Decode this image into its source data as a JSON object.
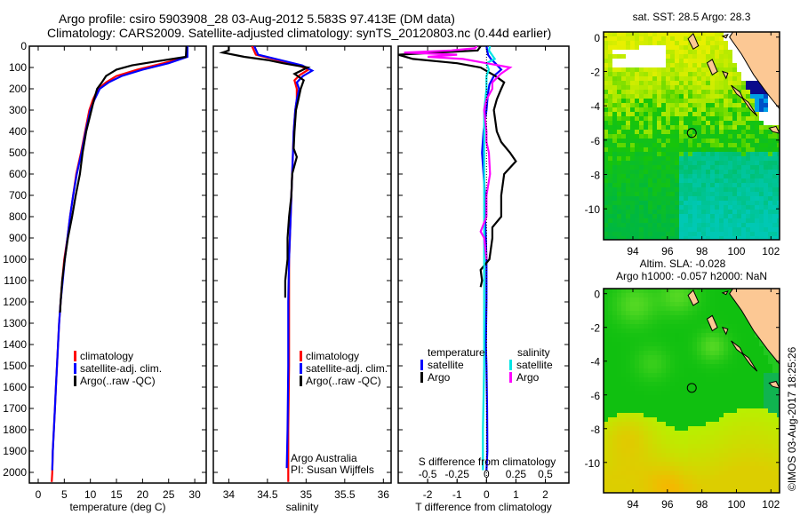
{
  "header": {
    "line1": "Argo profile: csiro 5903908_28 03-Aug-2012 5.583S 97.413E (DM data)",
    "line2": "Climatology: CARS2009. Satellite-adjusted climatology: synTS_20120803.nc (0.44d earlier)"
  },
  "colors": {
    "climatology": "#ff0000",
    "satellite": "#0000ff",
    "argo": "#000000",
    "salinity_satellite": "#00e5e5",
    "salinity_argo": "#ff00ff",
    "land": "#fcc894"
  },
  "chart_data": [
    {
      "type": "line",
      "name": "temperature-profile",
      "xlabel": "temperature (deg C)",
      "ylabel": "",
      "xlim": [
        -1.7,
        32.2
      ],
      "ylim": [
        2050,
        0
      ],
      "xticks": [
        0,
        5,
        10,
        15,
        20,
        25,
        30
      ],
      "yticks": [
        0,
        100,
        200,
        300,
        400,
        500,
        600,
        700,
        800,
        900,
        1000,
        1100,
        1200,
        1300,
        1400,
        1500,
        1600,
        1700,
        1800,
        1900,
        2000
      ],
      "legend": [
        "climatology",
        "satellite-adj. clim.",
        "Argo(..raw -QC)"
      ],
      "legend_position": "center",
      "series": [
        {
          "name": "climatology",
          "color": "#ff0000",
          "points": [
            [
              28.6,
              0
            ],
            [
              28.5,
              50
            ],
            [
              24,
              80
            ],
            [
              19,
              110
            ],
            [
              15,
              140
            ],
            [
              13,
              170
            ],
            [
              11.5,
              200
            ],
            [
              10.5,
              250
            ],
            [
              9.8,
              300
            ],
            [
              9.0,
              400
            ],
            [
              8.2,
              500
            ],
            [
              7.3,
              600
            ],
            [
              6.7,
              700
            ],
            [
              6.1,
              800
            ],
            [
              5.6,
              900
            ],
            [
              5.0,
              1000
            ],
            [
              4.6,
              1100
            ],
            [
              4.3,
              1200
            ],
            [
              4.0,
              1300
            ],
            [
              3.8,
              1400
            ],
            [
              3.6,
              1500
            ],
            [
              3.4,
              1600
            ],
            [
              3.2,
              1700
            ],
            [
              3.0,
              1800
            ],
            [
              2.8,
              1900
            ],
            [
              2.7,
              2000
            ],
            [
              2.6,
              2045
            ]
          ]
        },
        {
          "name": "satellite-adj. clim.",
          "color": "#0000ff",
          "points": [
            [
              28.6,
              0
            ],
            [
              28.6,
              50
            ],
            [
              25,
              80
            ],
            [
              20,
              110
            ],
            [
              16,
              140
            ],
            [
              13.5,
              170
            ],
            [
              11.8,
              200
            ],
            [
              10.8,
              250
            ],
            [
              10,
              300
            ],
            [
              9.1,
              400
            ],
            [
              8.3,
              500
            ],
            [
              7.4,
              600
            ],
            [
              6.7,
              700
            ],
            [
              6.1,
              800
            ],
            [
              5.6,
              900
            ],
            [
              5.1,
              1000
            ],
            [
              4.7,
              1100
            ],
            [
              4.3,
              1200
            ],
            [
              4.0,
              1300
            ],
            [
              3.8,
              1400
            ],
            [
              3.6,
              1500
            ],
            [
              3.4,
              1600
            ],
            [
              3.2,
              1700
            ],
            [
              3.0,
              1800
            ],
            [
              2.8,
              1900
            ],
            [
              2.7,
              1990
            ]
          ]
        },
        {
          "name": "Argo(..raw -QC)",
          "color": "#000000",
          "points": [
            [
              28.4,
              0
            ],
            [
              28.3,
              50
            ],
            [
              23,
              70
            ],
            [
              18,
              90
            ],
            [
              15,
              110
            ],
            [
              13,
              140
            ],
            [
              12.2,
              170
            ],
            [
              11.3,
              200
            ],
            [
              10.7,
              250
            ],
            [
              10.2,
              300
            ],
            [
              9.2,
              400
            ],
            [
              8.5,
              500
            ],
            [
              8.0,
              600
            ],
            [
              7.2,
              700
            ],
            [
              6.5,
              800
            ],
            [
              5.7,
              900
            ],
            [
              5.1,
              1000
            ],
            [
              4.6,
              1100
            ],
            [
              4.3,
              1200
            ],
            [
              4.2,
              1250
            ]
          ]
        }
      ]
    },
    {
      "type": "line",
      "name": "salinity-profile",
      "xlabel": "salinity",
      "xlim": [
        33.8,
        36.1
      ],
      "ylim": [
        2050,
        0
      ],
      "xticks": [
        34,
        34.5,
        35,
        35.5,
        36
      ],
      "legend": [
        "climatology",
        "satellite-adj. clim.",
        "Argo(..raw -QC)"
      ],
      "legend_position": "center-right",
      "annotation": [
        "Argo Australia",
        "PI: Susan Wijffels"
      ],
      "series": [
        {
          "name": "climatology",
          "color": "#ff0000",
          "points": [
            [
              34.3,
              0
            ],
            [
              34.35,
              40
            ],
            [
              34.9,
              90
            ],
            [
              35.03,
              110
            ],
            [
              34.92,
              135
            ],
            [
              34.85,
              160
            ],
            [
              34.88,
              200
            ],
            [
              34.88,
              250
            ],
            [
              34.86,
              300
            ],
            [
              34.84,
              400
            ],
            [
              34.83,
              500
            ],
            [
              34.82,
              600
            ],
            [
              34.81,
              700
            ],
            [
              34.8,
              800
            ],
            [
              34.79,
              900
            ],
            [
              34.78,
              1000
            ],
            [
              34.78,
              1200
            ],
            [
              34.78,
              1500
            ],
            [
              34.77,
              1800
            ],
            [
              34.77,
              2045
            ]
          ]
        },
        {
          "name": "satellite-adj. clim.",
          "color": "#0000ff",
          "points": [
            [
              34.33,
              0
            ],
            [
              34.38,
              40
            ],
            [
              34.95,
              90
            ],
            [
              35.08,
              115
            ],
            [
              34.96,
              140
            ],
            [
              34.88,
              170
            ],
            [
              34.91,
              200
            ],
            [
              34.88,
              250
            ],
            [
              34.86,
              300
            ],
            [
              34.84,
              400
            ],
            [
              34.83,
              500
            ],
            [
              34.82,
              600
            ],
            [
              34.81,
              700
            ],
            [
              34.8,
              800
            ],
            [
              34.79,
              900
            ],
            [
              34.78,
              1000
            ],
            [
              34.77,
              1200
            ],
            [
              34.77,
              1500
            ],
            [
              34.76,
              1800
            ],
            [
              34.75,
              1980
            ]
          ]
        },
        {
          "name": "Argo(..raw -QC)",
          "color": "#000000",
          "points": [
            [
              34.0,
              0
            ],
            [
              34.0,
              20
            ],
            [
              33.92,
              30
            ],
            [
              34.2,
              50
            ],
            [
              34.5,
              65
            ],
            [
              34.7,
              80
            ],
            [
              35.02,
              100
            ],
            [
              34.85,
              130
            ],
            [
              34.97,
              160
            ],
            [
              34.93,
              200
            ],
            [
              34.9,
              250
            ],
            [
              34.87,
              300
            ],
            [
              34.85,
              400
            ],
            [
              34.84,
              480
            ],
            [
              34.88,
              520
            ],
            [
              34.82,
              600
            ],
            [
              34.81,
              700
            ],
            [
              34.78,
              800
            ],
            [
              34.76,
              900
            ],
            [
              34.76,
              1000
            ],
            [
              34.73,
              1100
            ],
            [
              34.73,
              1180
            ]
          ]
        }
      ]
    },
    {
      "type": "line",
      "name": "difference-profile",
      "xlabel": "T difference from climatology",
      "xlabel2": "S difference from climatology",
      "xlim": [
        -3.0,
        2.8
      ],
      "xticks": [
        -2,
        -1,
        0,
        1,
        2
      ],
      "xticks2": [
        -0.5,
        -0.25,
        0,
        0.25,
        0.5
      ],
      "ylim": [
        2050,
        0
      ],
      "legend_headers": [
        "temperature",
        "salinity"
      ],
      "legend": [
        "satellite",
        "Argo",
        "satellite",
        "Argo"
      ],
      "legend_position": "bottom",
      "series": [
        {
          "name": "temperature satellite",
          "color": "#0000ff",
          "axis": "T",
          "points": [
            [
              0.0,
              0
            ],
            [
              0.05,
              40
            ],
            [
              0.15,
              60
            ],
            [
              0.3,
              80
            ],
            [
              0.5,
              110
            ],
            [
              0.25,
              140
            ],
            [
              0.1,
              180
            ],
            [
              0.05,
              220
            ],
            [
              0.0,
              300
            ],
            [
              -0.1,
              400
            ],
            [
              -0.15,
              500
            ],
            [
              -0.1,
              600
            ],
            [
              -0.05,
              700
            ],
            [
              -0.05,
              800
            ],
            [
              -0.02,
              900
            ],
            [
              0,
              1000
            ],
            [
              0,
              1200
            ],
            [
              -0.02,
              1400
            ],
            [
              0,
              1500
            ],
            [
              0.02,
              1700
            ],
            [
              0.03,
              1900
            ],
            [
              0.0,
              1990
            ]
          ]
        },
        {
          "name": "temperature Argo",
          "color": "#000000",
          "axis": "T",
          "points": [
            [
              -0.2,
              0
            ],
            [
              -0.3,
              20
            ],
            [
              -3.0,
              40
            ],
            [
              -2.5,
              60
            ],
            [
              -1.0,
              80
            ],
            [
              -0.2,
              100
            ],
            [
              0.3,
              140
            ],
            [
              0.6,
              170
            ],
            [
              0.5,
              200
            ],
            [
              0.35,
              250
            ],
            [
              0.25,
              300
            ],
            [
              0.35,
              400
            ],
            [
              0.5,
              450
            ],
            [
              0.8,
              500
            ],
            [
              1.0,
              540
            ],
            [
              0.6,
              600
            ],
            [
              0.5,
              700
            ],
            [
              0.5,
              800
            ],
            [
              0.2,
              850
            ],
            [
              0.2,
              900
            ],
            [
              0.1,
              1000
            ],
            [
              -0.2,
              1050
            ],
            [
              -0.15,
              1100
            ],
            [
              -0.2,
              1130
            ]
          ]
        },
        {
          "name": "salinity satellite",
          "color": "#00e5e5",
          "axis": "S",
          "points": [
            [
              0.03,
              0
            ],
            [
              0.02,
              20
            ],
            [
              0.07,
              60
            ],
            [
              0.0,
              80
            ],
            [
              0.02,
              110
            ],
            [
              0.0,
              140
            ],
            [
              0.0,
              200
            ],
            [
              -0.02,
              300
            ],
            [
              -0.02,
              500
            ],
            [
              -0.02,
              800
            ],
            [
              -0.02,
              1000
            ],
            [
              -0.02,
              1200
            ],
            [
              -0.02,
              1500
            ],
            [
              -0.03,
              1800
            ],
            [
              -0.03,
              1990
            ]
          ]
        },
        {
          "name": "salinity Argo",
          "color": "#ff00ff",
          "axis": "S",
          "points": [
            [
              -0.08,
              0
            ],
            [
              -0.1,
              10
            ],
            [
              -0.3,
              20
            ],
            [
              -0.7,
              30
            ],
            [
              -0.25,
              40
            ],
            [
              -0.5,
              50
            ],
            [
              -0.2,
              60
            ],
            [
              0.0,
              80
            ],
            [
              0.1,
              90
            ],
            [
              0.2,
              100
            ],
            [
              0.12,
              130
            ],
            [
              0.05,
              170
            ],
            [
              0.05,
              200
            ],
            [
              0.0,
              250
            ],
            [
              -0.02,
              300
            ],
            [
              0.0,
              400
            ],
            [
              0.0,
              450
            ],
            [
              0.02,
              500
            ],
            [
              0.03,
              600
            ],
            [
              0.0,
              700
            ],
            [
              0.0,
              800
            ],
            [
              -0.05,
              870
            ],
            [
              -0.02,
              900
            ],
            [
              0.0,
              1000
            ]
          ]
        }
      ]
    },
    {
      "type": "heatmap",
      "name": "sst-map",
      "title": "sat. SST: 28.5 Argo: 28.3",
      "xlim": [
        92.3,
        102.5
      ],
      "ylim": [
        -11.8,
        0.3
      ],
      "xticks": [
        94,
        96,
        98,
        100,
        102
      ],
      "yticks": [
        0,
        -2,
        -4,
        -6,
        -8,
        -10
      ],
      "marker": {
        "lon": 97.413,
        "lat": -5.583
      }
    },
    {
      "type": "heatmap",
      "name": "sla-map",
      "title": "Altim. SLA: -0.028",
      "subtitle": "Argo h1000: -0.057 h2000: NaN",
      "xlim": [
        92.3,
        102.5
      ],
      "ylim": [
        -11.8,
        0.3
      ],
      "xticks": [
        94,
        96,
        98,
        100,
        102
      ],
      "yticks": [
        0,
        -2,
        -4,
        -6,
        -8,
        -10
      ],
      "marker": {
        "lon": 97.413,
        "lat": -5.583
      }
    }
  ],
  "footer": {
    "credit": "©IMOS 03-Aug-2017 18:25:26"
  }
}
